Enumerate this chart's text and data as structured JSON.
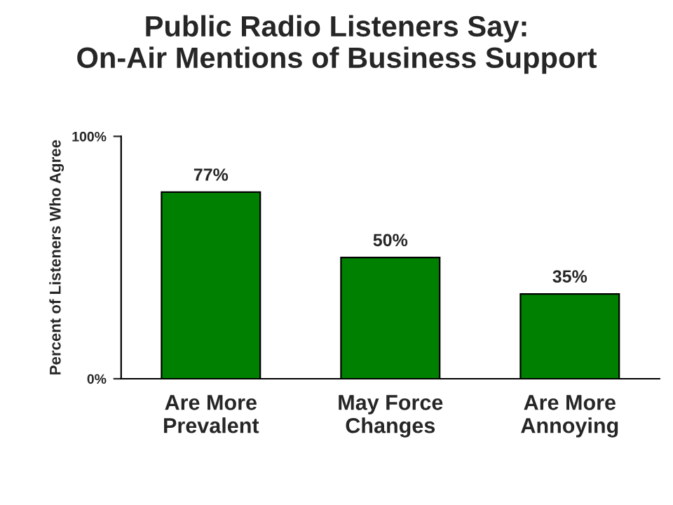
{
  "chart_data": {
    "type": "bar",
    "title": "Public Radio Listeners Say:\nOn-Air Mentions of Business Support",
    "ylabel": "Percent of Listeners Who Agree",
    "categories": [
      "Are More\nPrevalent",
      "May Force\nChanges",
      "Are More\nAnnoying"
    ],
    "values": [
      77,
      50,
      35
    ],
    "value_labels": [
      "77%",
      "50%",
      "35%"
    ],
    "color": "#008000",
    "ylim": [
      0,
      100
    ],
    "yticks": [
      {
        "value": 0,
        "label": "0%"
      },
      {
        "value": 100,
        "label": "100%"
      }
    ],
    "grid": false
  }
}
